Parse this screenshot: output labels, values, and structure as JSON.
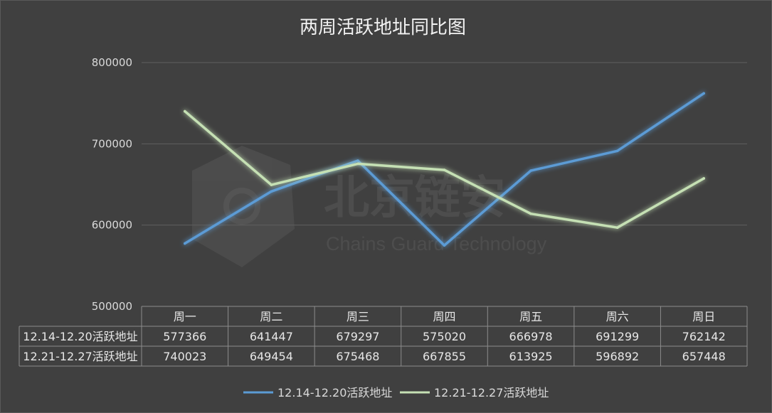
{
  "watermark": {
    "name": "北京链安",
    "english": "Chains Guard Technology"
  },
  "chart_data": {
    "type": "line",
    "title": "两周活跃地址同比图",
    "categories": [
      "周一",
      "周二",
      "周三",
      "周四",
      "周五",
      "周六",
      "周日"
    ],
    "ylim": [
      500000,
      800000
    ],
    "yticks": [
      500000,
      600000,
      700000,
      800000
    ],
    "grid": true,
    "legend_position": "bottom",
    "data_table": true,
    "series": [
      {
        "name": "12.14-12.20活跃地址",
        "color": "#5b9bd5",
        "values": [
          577366,
          641447,
          679297,
          575020,
          666978,
          691299,
          762142
        ]
      },
      {
        "name": "12.21-12.27活跃地址",
        "color": "#c5e0b4",
        "values": [
          740023,
          649454,
          675468,
          667855,
          613925,
          596892,
          657448
        ]
      }
    ]
  }
}
